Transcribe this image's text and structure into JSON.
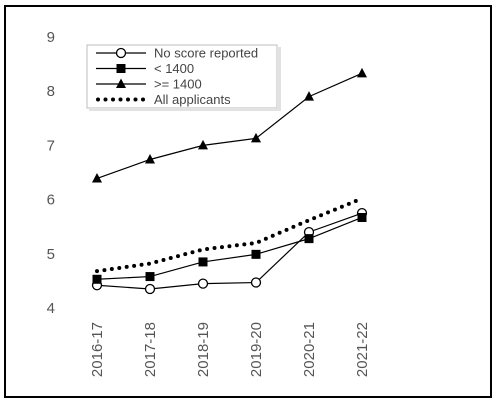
{
  "chart_data": {
    "type": "line",
    "title": "",
    "xlabel": "",
    "ylabel": "",
    "categories": [
      "2016-17",
      "2017-18",
      "2018-19",
      "2019-20",
      "2020-21",
      "2021-22"
    ],
    "ylim": [
      4,
      9
    ],
    "yticks": [
      4,
      5,
      6,
      7,
      8,
      9
    ],
    "grid": false,
    "legend_position": "top-left",
    "series": [
      {
        "name": "No score reported",
        "marker": "open-circle",
        "style": "solid",
        "color": "#000000",
        "values": [
          4.42,
          4.35,
          4.45,
          4.47,
          5.4,
          5.75
        ]
      },
      {
        "name": "< 1400",
        "marker": "filled-square",
        "style": "solid",
        "color": "#000000",
        "values": [
          4.53,
          4.58,
          4.85,
          4.99,
          5.28,
          5.67
        ]
      },
      {
        "name": ">= 1400",
        "marker": "filled-triangle",
        "style": "solid",
        "color": "#000000",
        "values": [
          6.39,
          6.74,
          7.0,
          7.13,
          7.9,
          8.33
        ]
      },
      {
        "name": "All applicants",
        "marker": "none",
        "style": "dotted",
        "color": "#000000",
        "values": [
          4.68,
          4.82,
          5.08,
          5.2,
          5.62,
          6.02
        ]
      }
    ]
  }
}
